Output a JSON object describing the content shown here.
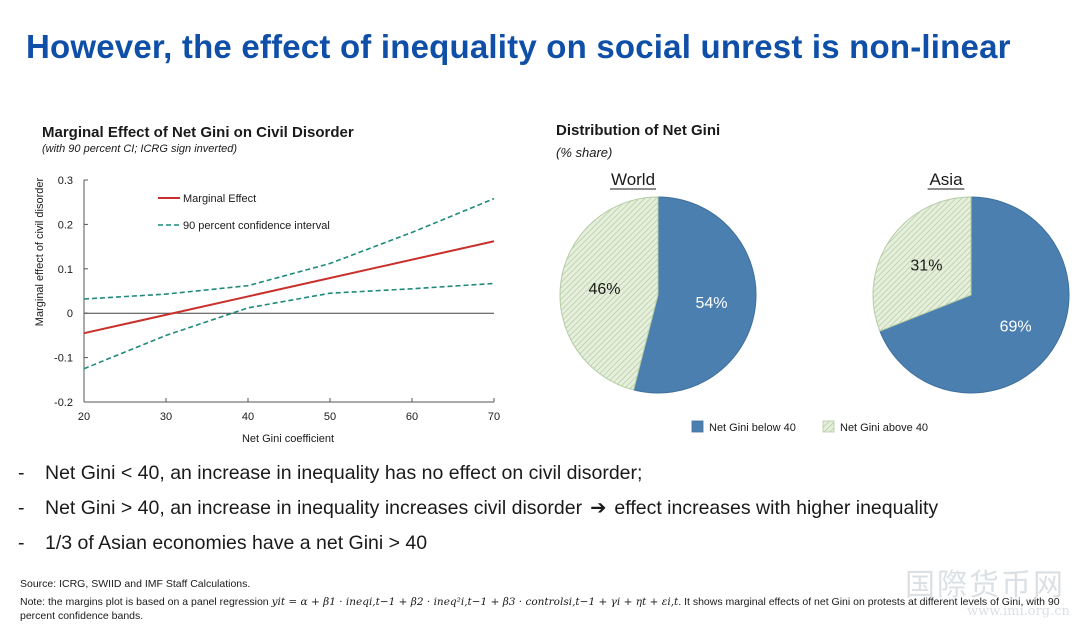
{
  "slide": {
    "title": "However, the effect of inequality on social unrest is non-linear"
  },
  "left_chart": {
    "title": "Marginal Effect of Net Gini on Civil Disorder",
    "subtitle": "(with 90 percent CI; ICRG sign inverted)"
  },
  "right_chart": {
    "title": "Distribution of Net Gini",
    "subtitle": "(% share)"
  },
  "chart_data": [
    {
      "type": "line",
      "title": "Marginal Effect of Net Gini on Civil Disorder",
      "subtitle": "(with 90 percent CI; ICRG sign inverted)",
      "xlabel": "Net Gini coefficient",
      "ylabel": "Marginal effect of civil disorder",
      "xlim": [
        20,
        70
      ],
      "ylim": [
        -0.2,
        0.3
      ],
      "xticks": [
        20,
        30,
        40,
        50,
        60,
        70
      ],
      "yticks": [
        -0.2,
        -0.1,
        0,
        0.1,
        0.2,
        0.3
      ],
      "ytick_labels": [
        "-0.2",
        "-0.1",
        "0",
        "0.1",
        "0.2",
        "0.3"
      ],
      "grid": false,
      "legend_position": "top-left",
      "zero_line": true,
      "series": [
        {
          "name": "Marginal Effect",
          "style": "solid",
          "color": "#c9302c",
          "x": [
            20,
            70
          ],
          "y": [
            -0.045,
            0.162
          ]
        },
        {
          "name": "90 percent confidence interval",
          "style": "dashed",
          "color": "#1f8a7a",
          "x": [
            20,
            30,
            40,
            50,
            60,
            70
          ],
          "y": [
            0.032,
            0.043,
            0.062,
            0.112,
            0.182,
            0.258
          ]
        },
        {
          "name": "",
          "style": "dashed",
          "color": "#1f8a7a",
          "x": [
            20,
            30,
            40,
            50,
            60,
            70
          ],
          "y": [
            -0.125,
            -0.05,
            0.012,
            0.045,
            0.055,
            0.067
          ]
        }
      ]
    },
    {
      "type": "pie",
      "title": "World",
      "slices": [
        {
          "label": "Net Gini below 40",
          "value": 54,
          "display": "54%",
          "color": "#4a7fb0"
        },
        {
          "label": "Net Gini above 40",
          "value": 46,
          "display": "46%",
          "color": "#dbe8d0"
        }
      ]
    },
    {
      "type": "pie",
      "title": "Asia",
      "slices": [
        {
          "label": "Net Gini below 40",
          "value": 69,
          "display": "69%",
          "color": "#4a7fb0"
        },
        {
          "label": "Net Gini above 40",
          "value": 31,
          "display": "31%",
          "color": "#dbe8d0"
        }
      ]
    }
  ],
  "pie_legend": [
    {
      "label": "Net Gini below 40",
      "color": "#4a7fb0"
    },
    {
      "label": "Net Gini above 40",
      "color": "#dbe8d0"
    }
  ],
  "bullets": [
    {
      "dash": "-",
      "text": "Net Gini < 40, an increase in inequality has no effect on civil disorder;",
      "arrow": "",
      "text2": ""
    },
    {
      "dash": "-",
      "text": "Net Gini > 40, an increase in inequality increases civil disorder",
      "arrow": "➔",
      "text2": "effect increases with higher inequality"
    },
    {
      "dash": "-",
      "text": "1/3 of Asian economies have a net Gini > 40",
      "arrow": "",
      "text2": ""
    }
  ],
  "source": "Source: ICRG, SWIID and IMF Staff Calculations.",
  "note": {
    "prefix": "Note: the margins plot is based on a panel regression",
    "equation": "yit = α + β1 · ineqi,t−1 + β2 · ineq²i,t−1 + β3 · controlsi,t−1 + γi + ηt + εi,t",
    "suffix": ". It shows marginal effects of net Gini on protests at different levels of Gini, with 90 percent confidence bands."
  },
  "watermark": {
    "text": "国際货币网",
    "url": "www.imi.org.cn"
  }
}
